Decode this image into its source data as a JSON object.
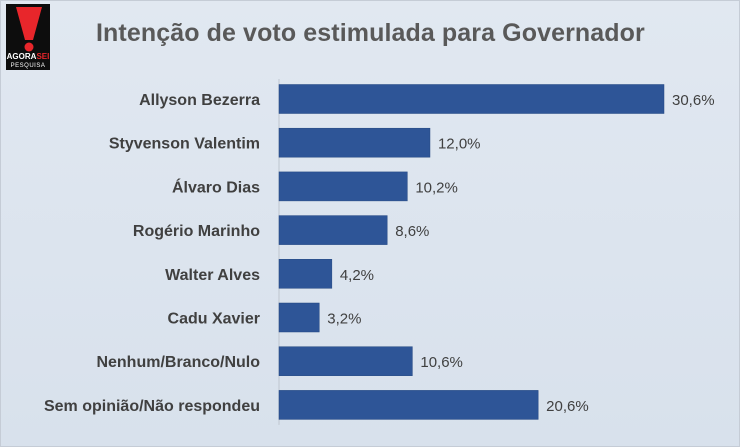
{
  "logo": {
    "brand": "AGORASEI",
    "brand_part1": "AGORA",
    "brand_part2": "SEI",
    "tagline": "PESQUISA",
    "colors": {
      "background": "#0d0d0d",
      "exclamation": "#e8262b",
      "text": "#ffffff",
      "accent": "#e8262b"
    }
  },
  "chart_data": {
    "type": "bar",
    "orientation": "horizontal",
    "title": "Intenção de voto estimulada para Governador",
    "xlabel": "",
    "ylabel": "",
    "xlim": [
      0,
      30.6
    ],
    "grid": false,
    "legend": "none",
    "bar_color": "#2e5597",
    "categories": [
      "Allyson Bezerra",
      "Styvenson Valentim",
      "Álvaro Dias",
      "Rogério Marinho",
      "Walter Alves",
      "Cadu Xavier",
      "Nenhum/Branco/Nulo",
      "Sem opinião/Não respondeu"
    ],
    "values": [
      30.6,
      12.0,
      10.2,
      8.6,
      4.2,
      3.2,
      10.6,
      20.6
    ],
    "value_labels": [
      "30,6%",
      "12,0%",
      "10,2%",
      "8,6%",
      "4,2%",
      "3,2%",
      "10,6%",
      "20,6%"
    ]
  }
}
